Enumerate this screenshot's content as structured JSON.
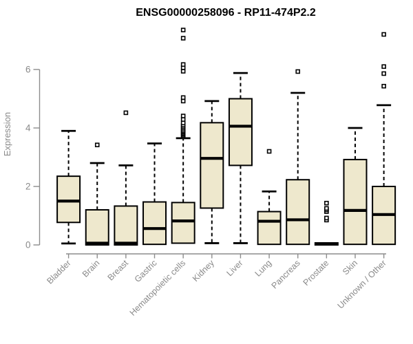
{
  "chart_data": {
    "type": "boxplot",
    "title": "ENSG00000258096 - RP11-474P2.2",
    "ylabel": "Expression",
    "xlabel": "",
    "ylim": [
      0,
      6
    ],
    "yticks": [
      0,
      2,
      4,
      6
    ],
    "grid": false,
    "legend": null,
    "categories": [
      "Bladder",
      "Brain",
      "Breast",
      "Gastric",
      "Hematopoietic cells",
      "Kidney",
      "Liver",
      "Lung",
      "Pancreas",
      "Prostate",
      "Skin",
      "Unknown / Other"
    ],
    "series": [
      {
        "label": "Bladder",
        "whisker_low": 0.05,
        "q1": 0.77,
        "median": 1.5,
        "q3": 2.35,
        "whisker_high": 3.9,
        "outliers": []
      },
      {
        "label": "Brain",
        "whisker_low": null,
        "q1": 0.0,
        "median": 0.06,
        "q3": 1.2,
        "whisker_high": 2.8,
        "outliers": [
          3.42
        ]
      },
      {
        "label": "Breast",
        "whisker_low": null,
        "q1": 0.0,
        "median": 0.06,
        "q3": 1.33,
        "whisker_high": 2.72,
        "outliers": [
          4.52
        ]
      },
      {
        "label": "Gastric",
        "whisker_low": null,
        "q1": 0.02,
        "median": 0.56,
        "q3": 1.47,
        "whisker_high": 3.47,
        "outliers": []
      },
      {
        "label": "Hematopoietic cells",
        "whisker_low": null,
        "q1": 0.06,
        "median": 0.82,
        "q3": 1.45,
        "whisker_high": 3.65,
        "outliers": [
          3.7,
          3.74,
          3.78,
          3.82,
          3.86,
          3.9,
          3.95,
          4.0,
          4.05,
          4.1,
          4.17,
          4.29,
          4.41,
          4.92,
          5.04,
          5.94,
          6.06,
          6.17,
          7.07,
          7.35
        ]
      },
      {
        "label": "Kidney",
        "whisker_low": 0.06,
        "q1": 1.26,
        "median": 2.96,
        "q3": 4.18,
        "whisker_high": 4.92,
        "outliers": []
      },
      {
        "label": "Liver",
        "whisker_low": 0.06,
        "q1": 2.72,
        "median": 4.06,
        "q3": 5.0,
        "whisker_high": 5.88,
        "outliers": []
      },
      {
        "label": "Lung",
        "whisker_low": null,
        "q1": 0.02,
        "median": 0.81,
        "q3": 1.14,
        "whisker_high": 1.83,
        "outliers": [
          3.2
        ]
      },
      {
        "label": "Pancreas",
        "whisker_low": null,
        "q1": 0.02,
        "median": 0.86,
        "q3": 2.23,
        "whisker_high": 5.2,
        "outliers": [
          5.93
        ]
      },
      {
        "label": "Prostate",
        "whisker_low": null,
        "q1": 0.0,
        "median": 0.04,
        "q3": 0.07,
        "whisker_high": null,
        "outliers": [
          0.85,
          0.92,
          1.14,
          1.2,
          1.25,
          1.43
        ]
      },
      {
        "label": "Skin",
        "whisker_low": null,
        "q1": 0.02,
        "median": 1.18,
        "q3": 2.92,
        "whisker_high": 4.0,
        "outliers": []
      },
      {
        "label": "Unknown / Other",
        "whisker_low": null,
        "q1": 0.02,
        "median": 1.04,
        "q3": 2.0,
        "whisker_high": 4.78,
        "outliers": [
          5.43,
          5.86,
          6.1,
          7.2
        ]
      }
    ],
    "colors": {
      "box_fill": "#EEE8CD",
      "box_stroke": "#000000",
      "median": "#000000",
      "whisker": "#000000",
      "outlier_fill": "#FFFFFF",
      "outlier_stroke": "#000000",
      "axis": "#8C8C8C",
      "tick_text": "#8A8A8A",
      "title_text": "#000000",
      "background": "#FFFFFF"
    }
  }
}
